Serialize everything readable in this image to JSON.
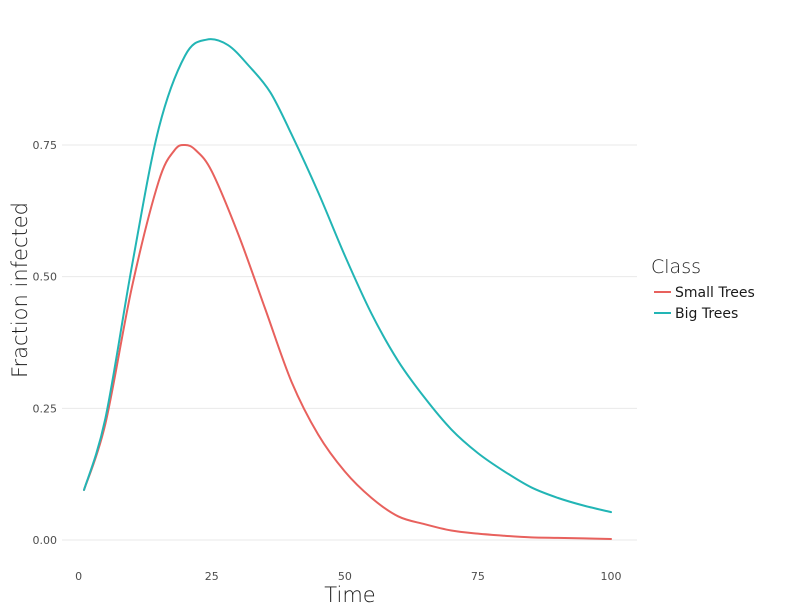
{
  "chart_data": {
    "type": "line",
    "xlabel": "Time",
    "ylabel": "Fraction infected",
    "xlim": [
      1,
      100
    ],
    "ylim": [
      0,
      0.95
    ],
    "x_ticks": [
      0,
      25,
      50,
      75,
      100
    ],
    "x_tick_labels": [
      "0",
      "25",
      "50",
      "75",
      "100"
    ],
    "y_ticks": [
      0,
      0.25,
      0.5,
      0.75
    ],
    "y_tick_labels": [
      "0.00",
      "0.25",
      "0.50",
      "0.75"
    ],
    "grid": true,
    "legend": {
      "title": "Class",
      "placement": "right"
    },
    "series": [
      {
        "name": "Small Trees",
        "color": "#e8615d",
        "x": [
          1,
          5,
          10,
          15,
          18,
          20,
          22,
          25,
          30,
          35,
          40,
          45,
          50,
          55,
          60,
          65,
          70,
          75,
          80,
          85,
          90,
          95,
          100
        ],
        "y": [
          0.095,
          0.22,
          0.48,
          0.68,
          0.74,
          0.75,
          0.74,
          0.7,
          0.58,
          0.44,
          0.3,
          0.2,
          0.13,
          0.08,
          0.045,
          0.03,
          0.018,
          0.012,
          0.008,
          0.005,
          0.004,
          0.003,
          0.002
        ]
      },
      {
        "name": "Big Trees",
        "color": "#22b5b5",
        "x": [
          1,
          5,
          10,
          15,
          20,
          24,
          28,
          32,
          36,
          40,
          45,
          50,
          55,
          60,
          65,
          70,
          75,
          80,
          85,
          90,
          95,
          100
        ],
        "y": [
          0.095,
          0.23,
          0.52,
          0.78,
          0.92,
          0.95,
          0.94,
          0.9,
          0.85,
          0.77,
          0.66,
          0.54,
          0.43,
          0.34,
          0.27,
          0.21,
          0.165,
          0.13,
          0.1,
          0.08,
          0.065,
          0.053
        ]
      }
    ]
  }
}
